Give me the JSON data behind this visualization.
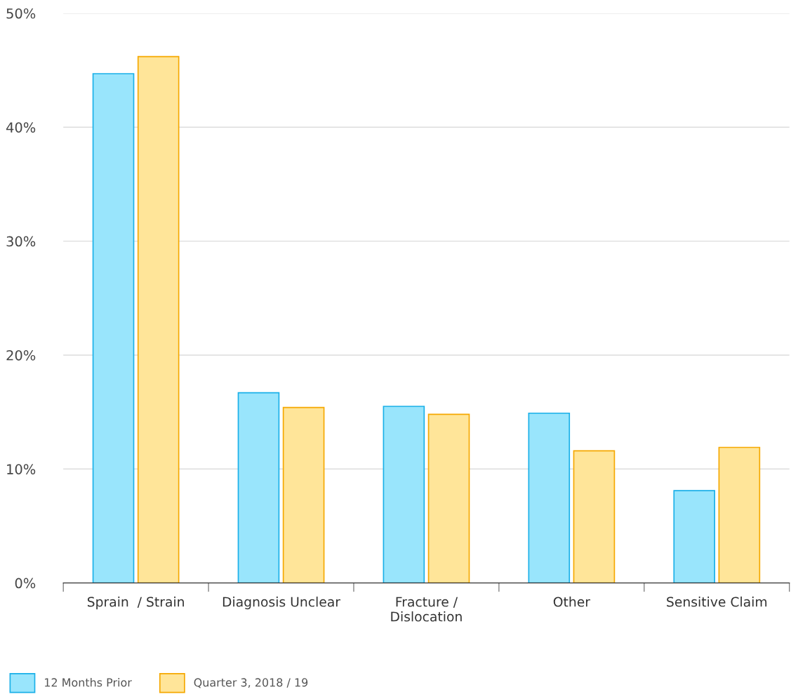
{
  "chart_data": {
    "type": "bar",
    "categories": [
      "Sprain  / Strain",
      "Diagnosis Unclear",
      "Fracture / Dislocation",
      "Other",
      "Sensitive Claim"
    ],
    "series": [
      {
        "name": "12 Months Prior",
        "color": "#99e5fc",
        "values": [
          44.7,
          16.7,
          15.5,
          14.9,
          8.1
        ]
      },
      {
        "name": "Quarter 3, 2018 / 19",
        "color": "#ffe599",
        "values": [
          46.2,
          15.4,
          14.8,
          11.6,
          11.9
        ]
      }
    ],
    "ylim": [
      0,
      50
    ],
    "yticks": [
      {
        "value": 0,
        "label": "0%"
      },
      {
        "value": 10,
        "label": "10%"
      },
      {
        "value": 20,
        "label": "20%"
      },
      {
        "value": 30,
        "label": "30%"
      },
      {
        "value": 40,
        "label": "40%"
      },
      {
        "value": 50,
        "label": "50%"
      }
    ],
    "grid": "y",
    "legend": "bottom left"
  }
}
